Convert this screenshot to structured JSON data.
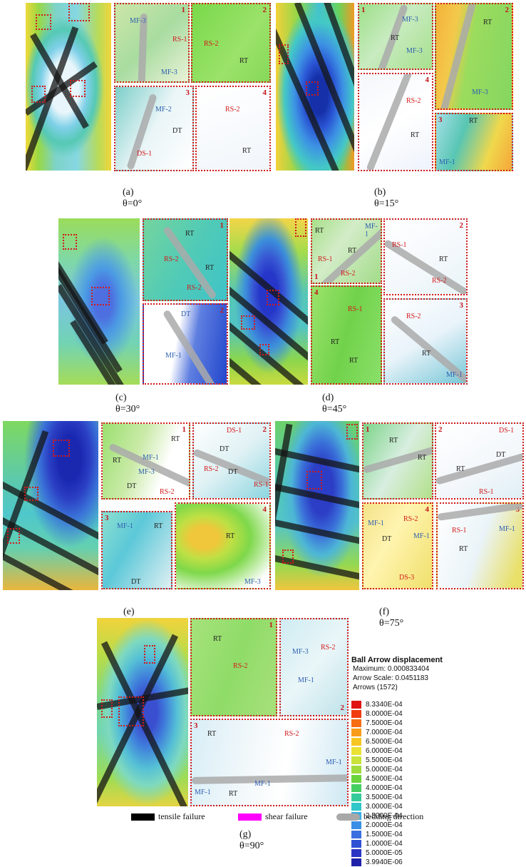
{
  "captions": {
    "a": "(a) θ=0°",
    "b": "(b) θ=15°",
    "c": "(c) θ=30°",
    "d": "(d) θ=45°",
    "e": "(e) θ=60°",
    "f": "(f) θ=75°",
    "g": "(g) θ=90°"
  },
  "legend": {
    "title": "Ball Arrow displacement",
    "maximum": "Maximum: 0.000833404",
    "arrow_scale": "Arrow Scale: 0.0451183",
    "arrows": "Arrows (1572)",
    "scale_values": [
      "8.3340E-04",
      "8.0000E-04",
      "7.5000E-04",
      "7.0000E-04",
      "6.5000E-04",
      "6.0000E-04",
      "5.5000E-04",
      "5.0000E-04",
      "4.5000E-04",
      "4.0000E-04",
      "3.5000E-04",
      "3.0000E-04",
      "2.5000E-04",
      "2.0000E-04",
      "1.5000E-04",
      "1.0000E-04",
      "5.0000E-05",
      "3.9940E-06"
    ],
    "scale_colors": [
      "#e01414",
      "#f03c10",
      "#f76d14",
      "#f99b1a",
      "#f6c623",
      "#eae232",
      "#c9e33a",
      "#9fdc3b",
      "#6bd43c",
      "#45cf62",
      "#33cb9a",
      "#2fc7c9",
      "#35aee3",
      "#3b8ee6",
      "#3a6fe0",
      "#3050d4",
      "#2a35c4",
      "#1f22a8"
    ]
  },
  "key": {
    "tensile": "tensile failure",
    "shear": "shear failure",
    "bedding": "bedding direction",
    "tensile_color": "#000000",
    "shear_color": "#ff00ff",
    "bedding_color": "#a8a8a8"
  },
  "labels": {
    "n1": "1",
    "n2": "2",
    "n3": "3",
    "n4": "4",
    "MF1": "MF-1",
    "MF2": "MF-2",
    "MF3": "MF-3",
    "RS1": "RS-1",
    "RS2": "RS-2",
    "DS1": "DS-1",
    "DS2": "DS-2",
    "DS3": "DS-3",
    "RT": "RT",
    "DT": "DT"
  },
  "colors": {
    "marker_red": "#d21a1a",
    "label_blue": "#2e5fb0"
  }
}
